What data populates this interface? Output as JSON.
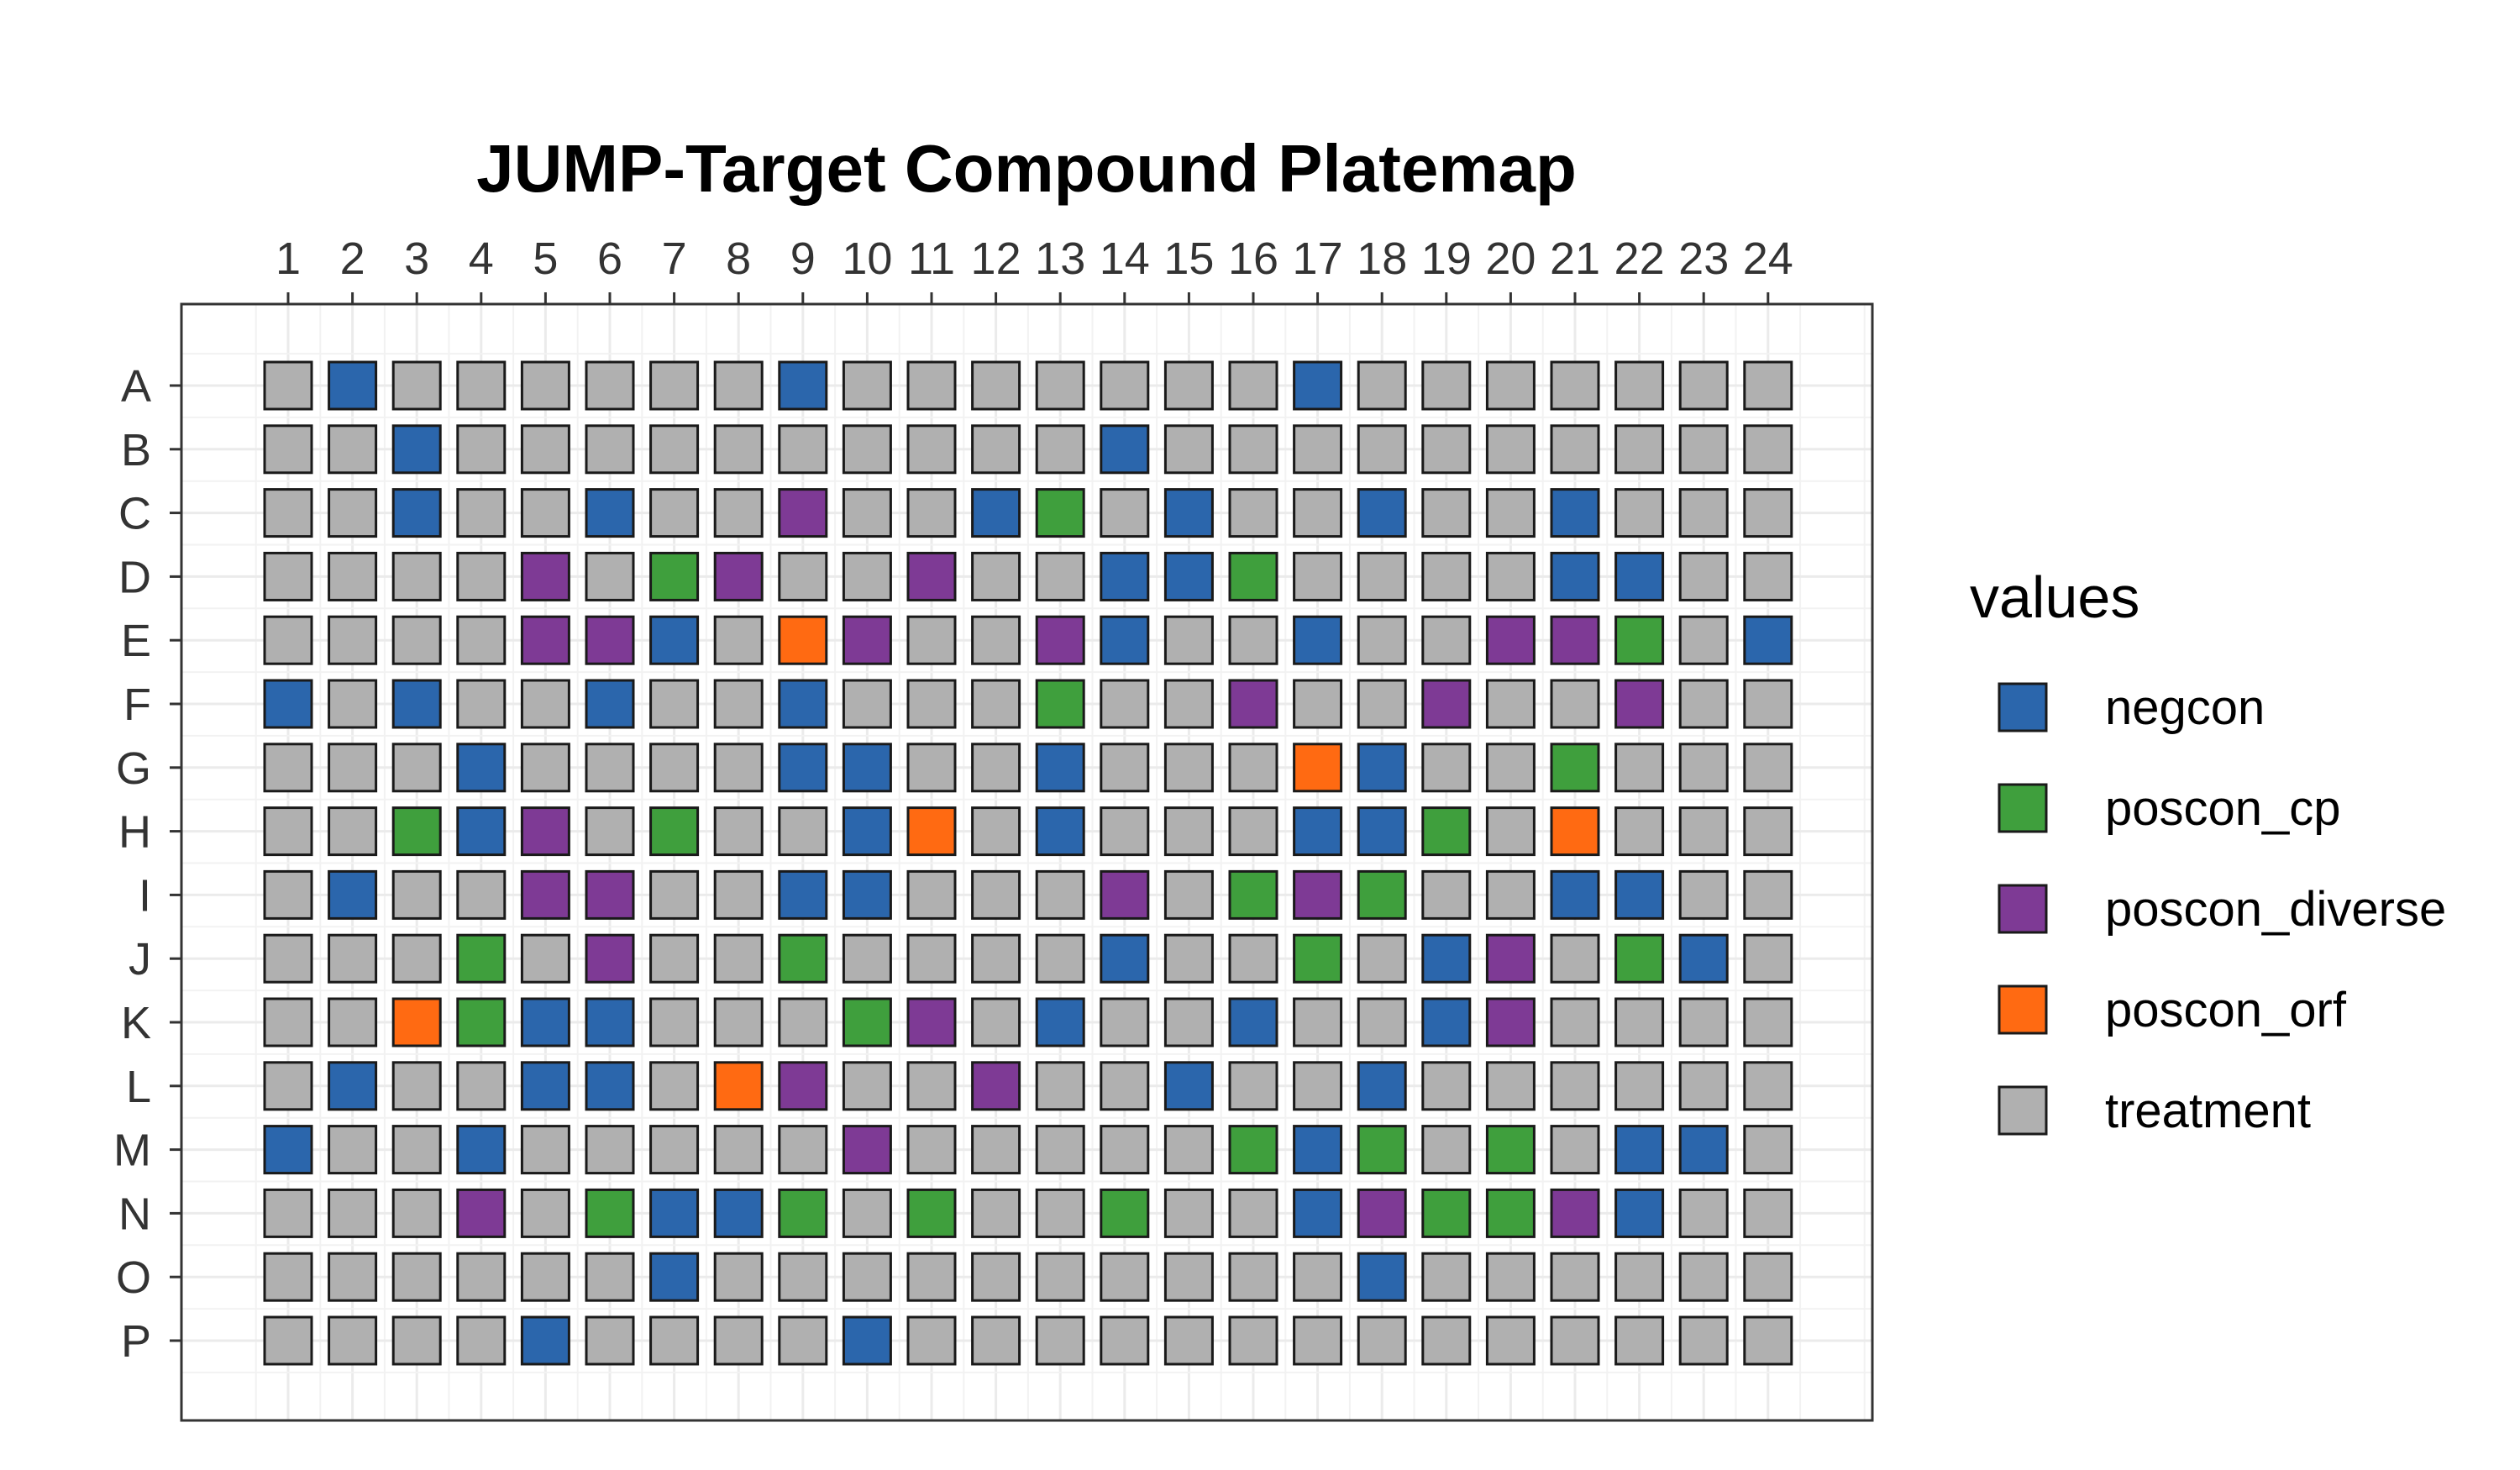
{
  "chart_data": {
    "type": "heatmap",
    "title": "JUMP-Target Compound Platemap",
    "columns": [
      "1",
      "2",
      "3",
      "4",
      "5",
      "6",
      "7",
      "8",
      "9",
      "10",
      "11",
      "12",
      "13",
      "14",
      "15",
      "16",
      "17",
      "18",
      "19",
      "20",
      "21",
      "22",
      "23",
      "24"
    ],
    "rows": [
      "A",
      "B",
      "C",
      "D",
      "E",
      "F",
      "G",
      "H",
      "I",
      "J",
      "K",
      "L",
      "M",
      "N",
      "O",
      "P"
    ],
    "legend": {
      "title": "values",
      "position": "right",
      "categories": [
        "negcon",
        "poscon_cp",
        "poscon_diverse",
        "poscon_orf",
        "treatment"
      ]
    },
    "colors": {
      "negcon": "#2b66ac",
      "poscon_cp": "#3f9f3d",
      "poscon_diverse": "#7e3a95",
      "poscon_orf": "#ff6a12",
      "treatment": "#b0b0b0"
    },
    "codes": {
      "N": "negcon",
      "C": "poscon_cp",
      "D": "poscon_diverse",
      "O": "poscon_orf",
      "T": "treatment"
    },
    "wells": {
      "A": "TNTTTTTTNTTTTTTTNTTTTTTT",
      "B": "TTNTTTTTTTTTTNTTTTTTTTTT",
      "C": "TTNTTNTTDTTNCTNTTNTTNTTT",
      "D": "TTTTDTCDTTDTTNNCTTTTNNTT",
      "E": "TTTTDDNTODTTDNTTNTTDDCTN",
      "F": "NTNTTNTTNTTTCTTDTTDTTDTT",
      "G": "TTTNTTTTNNTTNTTTONTTCTTT",
      "H": "TTCNDTCTTNOTNTTTNNCTOTTT",
      "I": "TNTTDDTTNNTTTDTCDCTTNNTT",
      "J": "TTTCTDTTCTTTTNTTCTNDTCNT",
      "K": "TTOCNNTTTCDTNTTNTTNDTTTT",
      "L": "TNTTNNTODTTDTTNTTNTTTTTT",
      "M": "NTTNTTTTTDTTTTTCNCTCTNNT",
      "N": "TTTDTCNNCTCTTCTTNDCCDNTT",
      "O": "TTTTTTNTTTTTTTTTTNTTTTTT",
      "P": "TTTTNTTTTNTTTTTTTTTTTTTT"
    }
  }
}
